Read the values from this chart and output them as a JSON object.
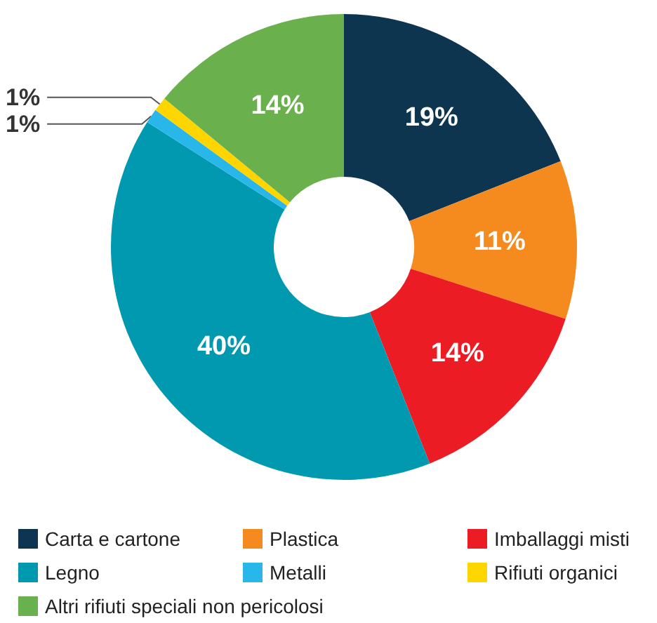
{
  "chart_data": {
    "type": "donut",
    "categories": [
      "Carta e cartone",
      "Plastica",
      "Imballaggi misti",
      "Legno",
      "Metalli",
      "Rifiuti organici",
      "Altri rifiuti speciali non pericolosi"
    ],
    "values": [
      19,
      11,
      14,
      40,
      1,
      1,
      14
    ],
    "colors": [
      "#0d3550",
      "#f58a1f",
      "#ec1c24",
      "#0099b0",
      "#29b6e8",
      "#ffd500",
      "#6ab04c"
    ],
    "value_labels": [
      "19%",
      "11%",
      "14%",
      "40%",
      "1%",
      "1%",
      "14%"
    ],
    "legend": "bottom"
  }
}
